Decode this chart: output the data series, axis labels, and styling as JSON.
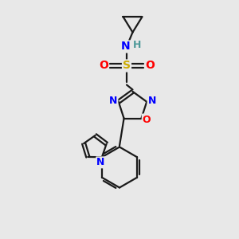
{
  "background_color": "#e8e8e8",
  "bond_color": "#1a1a1a",
  "N_color": "#0000ff",
  "O_color": "#ff0000",
  "S_color": "#ccaa00",
  "H_color": "#4d9999",
  "figsize": [
    3.0,
    3.0
  ],
  "dpi": 100,
  "xlim": [
    0,
    10
  ],
  "ylim": [
    0,
    10
  ],
  "lw": 1.6,
  "fs": 9
}
